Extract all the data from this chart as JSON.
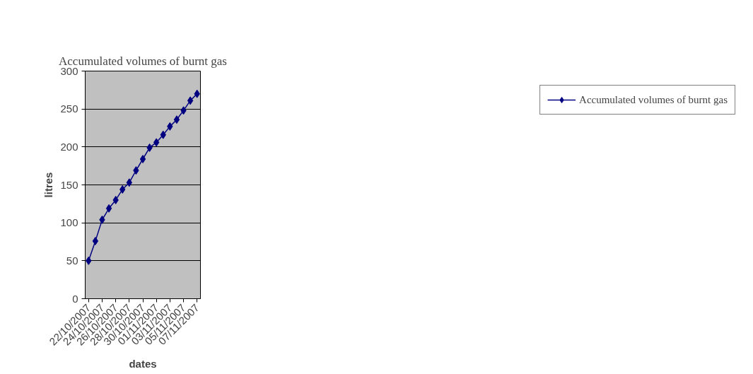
{
  "chart_data": {
    "type": "line",
    "title": "Accumulated volumes of burnt gas",
    "xlabel": "dates",
    "ylabel": "litres",
    "categories": [
      "22/10/2007",
      null,
      "24/10/2007",
      null,
      "26/10/2007",
      null,
      "28/10/2007",
      null,
      "30/10/2007",
      null,
      "01/11/2007",
      null,
      "03/11/2007",
      null,
      "05/11/2007",
      null,
      "07/11/2007"
    ],
    "series": [
      {
        "name": "Accumulated volumes of burnt gas",
        "color": "#000080",
        "values": [
          50,
          76,
          104,
          119,
          130,
          144,
          153,
          169,
          184,
          199,
          206,
          216,
          227,
          236,
          248,
          261,
          270
        ]
      }
    ],
    "ylim": [
      0,
      300
    ],
    "yticks": [
      0,
      50,
      100,
      150,
      200,
      250,
      300
    ],
    "grid": "y",
    "legend": "right",
    "marker": "diamond",
    "line_style": "solid"
  }
}
